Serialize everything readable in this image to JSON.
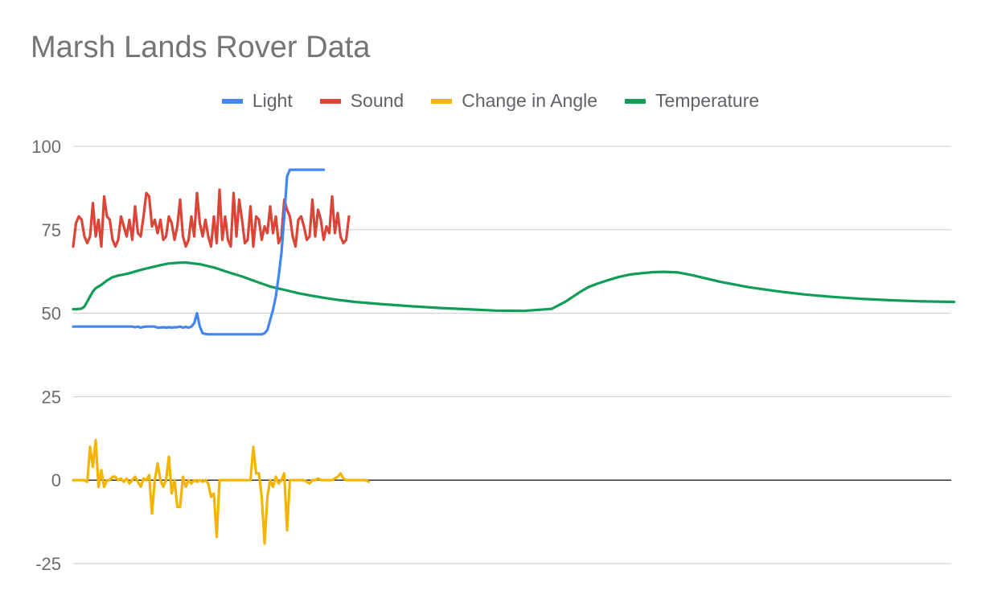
{
  "chart_data": {
    "type": "line",
    "title": "Marsh Lands Rover Data",
    "xlabel": "",
    "ylabel": "",
    "ylim": [
      -25,
      100
    ],
    "yticks": [
      100,
      75,
      50,
      25,
      0,
      -25
    ],
    "grid": true,
    "legend_position": "top",
    "series": [
      {
        "name": "Light",
        "color": "#4285f4",
        "values": [
          46,
          46,
          46,
          46,
          46,
          46,
          46,
          46,
          46,
          46,
          46,
          46,
          46,
          46,
          46,
          46,
          46,
          46,
          46,
          46,
          46,
          46,
          45.8,
          46,
          45.7,
          45.9,
          46,
          46,
          46,
          46,
          45.7,
          45.7,
          45.8,
          45.7,
          45.8,
          45.7,
          45.8,
          45.8,
          46,
          45.7,
          45.9,
          45.7,
          46,
          47,
          50,
          46,
          44,
          43.8,
          43.7,
          43.7,
          43.7,
          43.7,
          43.7,
          43.7,
          43.7,
          43.7,
          43.7,
          43.7,
          43.7,
          43.7,
          43.7,
          43.7,
          43.7,
          43.7,
          43.7,
          43.7,
          43.7,
          43.7,
          44,
          45,
          48,
          51,
          55,
          61,
          68,
          79,
          91,
          93,
          93,
          93,
          93,
          93,
          93,
          93,
          93,
          93,
          93,
          93,
          93,
          93
        ]
      },
      {
        "name": "Sound",
        "color": "#db4437",
        "values": [
          70,
          77,
          79,
          78,
          73,
          71,
          73,
          83,
          73,
          78,
          70,
          85,
          79,
          78,
          72,
          70,
          72,
          79,
          76,
          73,
          78,
          72,
          82,
          74,
          73,
          79,
          86,
          85,
          76,
          78,
          74,
          78,
          72,
          73,
          79,
          77,
          72,
          76,
          84,
          73,
          70,
          72,
          79,
          73,
          86,
          77,
          73,
          78,
          73,
          70,
          79,
          71,
          87,
          72,
          79,
          72,
          70,
          86,
          73,
          84,
          78,
          71,
          72,
          82,
          70,
          79,
          78,
          72,
          76,
          74,
          82,
          74,
          79,
          71,
          73,
          84,
          81,
          79,
          73,
          70,
          78,
          79,
          76,
          72,
          73,
          84,
          73,
          81,
          78,
          72,
          76,
          74,
          85,
          74,
          80,
          73,
          71,
          72,
          79
        ]
      },
      {
        "name": "Change in Angle",
        "color": "#f4b400",
        "values": [
          0,
          0,
          0,
          0,
          0,
          -0.5,
          10,
          4,
          12,
          -2,
          3,
          -2,
          0,
          0,
          1,
          1,
          0,
          0.5,
          -0.5,
          0.5,
          -1,
          0,
          1,
          -0.5,
          -2,
          0.5,
          0,
          1.5,
          -10,
          0,
          5,
          0,
          -2,
          0,
          7,
          -4,
          0,
          -8,
          -8,
          1,
          -2,
          0,
          -1,
          0,
          -0.5,
          0,
          -0.5,
          0,
          -1,
          -5,
          -4,
          -17,
          0,
          0,
          0,
          0,
          0,
          0,
          0,
          0,
          0,
          0,
          0,
          0,
          10,
          2,
          2,
          -5,
          -19,
          -5,
          0,
          -2,
          1,
          -1,
          0,
          2,
          -15,
          0,
          0,
          0,
          0,
          0,
          0,
          -0.5,
          -1,
          0,
          0,
          0.5,
          0,
          0,
          0,
          0,
          0,
          0.5,
          1,
          2,
          0.5,
          0,
          0,
          0,
          0,
          0,
          0,
          0,
          0,
          -0.5
        ]
      },
      {
        "name": "Temperature",
        "color": "#0f9d58",
        "x": [
          0,
          1,
          2,
          3,
          4,
          5,
          6,
          7,
          8,
          10,
          12,
          14,
          16,
          18,
          20,
          22,
          25,
          28,
          31,
          34,
          37,
          40,
          45,
          50,
          55,
          60,
          65,
          70,
          75,
          80,
          85,
          90,
          95,
          100,
          110,
          120,
          130,
          140,
          150,
          160,
          170,
          175,
          180,
          183,
          186,
          190,
          194,
          198,
          202,
          206,
          210,
          215,
          220,
          225,
          230,
          240,
          250,
          260,
          270,
          280,
          290,
          300,
          313
        ],
        "values": [
          51.2,
          51.2,
          51.3,
          51.4,
          52,
          53.5,
          55,
          56.5,
          57.5,
          58.5,
          59.8,
          60.8,
          61.3,
          61.6,
          62,
          62.5,
          63.2,
          63.8,
          64.4,
          64.9,
          65.1,
          65.2,
          64.7,
          63.7,
          62.3,
          61,
          59.5,
          58,
          57,
          56,
          55.2,
          54.5,
          53.9,
          53.4,
          52.7,
          52.1,
          51.6,
          51.2,
          50.8,
          50.7,
          51.3,
          53.5,
          56.3,
          57.8,
          58.8,
          59.9,
          60.9,
          61.6,
          62,
          62.3,
          62.4,
          62.2,
          61.4,
          60.4,
          59.4,
          57.8,
          56.6,
          55.6,
          54.9,
          54.3,
          53.9,
          53.6,
          53.4
        ]
      }
    ],
    "x_count": 313
  }
}
